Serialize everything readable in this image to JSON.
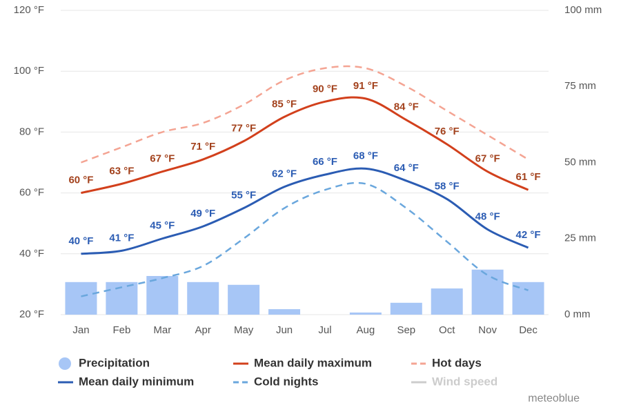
{
  "chart_data": {
    "type": "line",
    "categories": [
      "Jan",
      "Feb",
      "Mar",
      "Apr",
      "May",
      "Jun",
      "Jul",
      "Aug",
      "Sep",
      "Oct",
      "Nov",
      "Dec"
    ],
    "ylim": [
      20,
      120
    ],
    "yticks": [
      {
        "value": 20,
        "label": "20 °F"
      },
      {
        "value": 40,
        "label": "40 °F"
      },
      {
        "value": 60,
        "label": "60 °F"
      },
      {
        "value": 80,
        "label": "80 °F"
      },
      {
        "value": 100,
        "label": "100 °F"
      },
      {
        "value": 120,
        "label": "120 °F"
      }
    ],
    "y2lim": [
      0,
      100
    ],
    "y2ticks": [
      {
        "value": 0,
        "label": "0 mm"
      },
      {
        "value": 25,
        "label": "25 mm"
      },
      {
        "value": 50,
        "label": "50 mm"
      },
      {
        "value": 75,
        "label": "75 mm"
      },
      {
        "value": 100,
        "label": "100 mm"
      }
    ],
    "grid": true,
    "series": [
      {
        "name": "Precipitation",
        "color": "#a7c6f6",
        "style": "bar",
        "axis": "y2",
        "values": [
          10.7,
          10.7,
          12.7,
          10.7,
          9.8,
          1.8,
          0,
          0.7,
          3.9,
          8.6,
          14.8,
          10.7
        ]
      },
      {
        "name": "Mean daily maximum",
        "color": "#d2401c",
        "style": "solid",
        "label_color": "#a3421d",
        "values": [
          60,
          63,
          67,
          71,
          77,
          85,
          90,
          91,
          84,
          76,
          67,
          61
        ],
        "value_labels": [
          "60 °F",
          "63 °F",
          "67 °F",
          "71 °F",
          "77 °F",
          "85 °F",
          "90 °F",
          "91 °F",
          "84 °F",
          "76 °F",
          "67 °F",
          "61 °F"
        ]
      },
      {
        "name": "Hot days",
        "color": "#f4a493",
        "style": "dashed",
        "values": [
          70,
          75,
          80,
          83,
          89,
          97,
          101,
          101,
          95,
          87,
          79,
          71
        ]
      },
      {
        "name": "Mean daily minimum",
        "color": "#2b5cb3",
        "style": "solid",
        "label_color": "#2b5cb3",
        "values": [
          40,
          41,
          45,
          49,
          55,
          62,
          66,
          68,
          64,
          58,
          48,
          42
        ],
        "value_labels": [
          "40 °F",
          "41 °F",
          "45 °F",
          "49 °F",
          "55 °F",
          "62 °F",
          "66 °F",
          "68 °F",
          "64 °F",
          "58 °F",
          "48 °F",
          "42 °F"
        ]
      },
      {
        "name": "Cold nights",
        "color": "#6aa7dd",
        "style": "dashed",
        "values": [
          26,
          29,
          32,
          36,
          45,
          55,
          61,
          63,
          55,
          44,
          33,
          28
        ]
      },
      {
        "name": "Wind speed",
        "color": "#cccccc",
        "style": "solid",
        "hidden": true,
        "values": [
          null,
          null,
          null,
          null,
          null,
          null,
          null,
          null,
          null,
          null,
          null,
          null
        ]
      }
    ],
    "credit": "meteoblue"
  }
}
